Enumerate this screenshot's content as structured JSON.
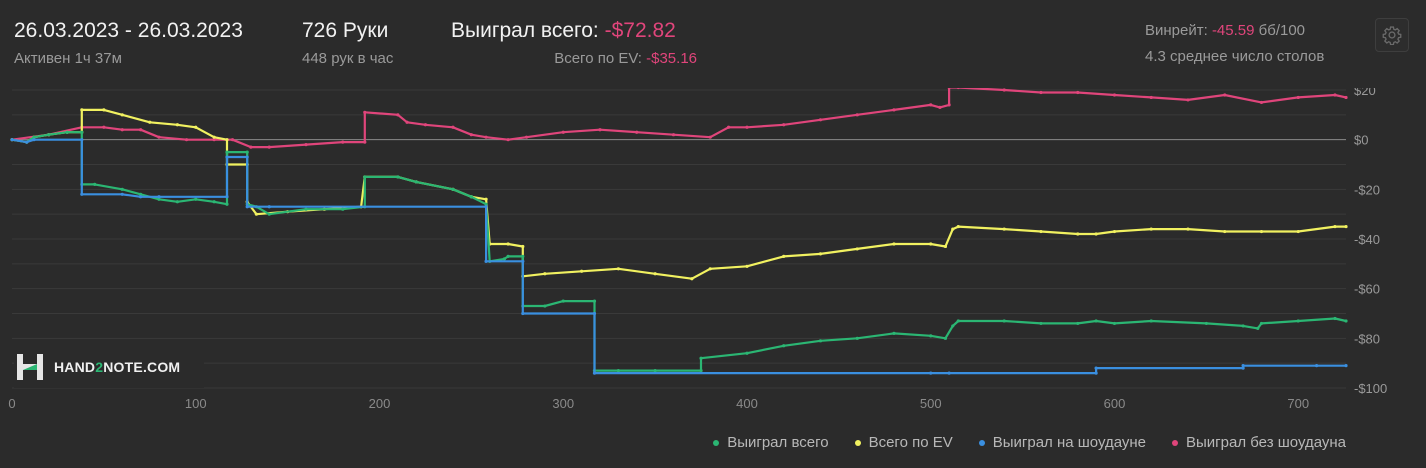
{
  "header": {
    "date_range": "26.03.2023 - 26.03.2023",
    "active": "Активен 1ч 37м",
    "hands": "726 Руки",
    "hands_per_hour": "448 рук в час",
    "won_label": "Выиграл всего: ",
    "won_value": "-$72.82",
    "ev_label": "Всего по EV: ",
    "ev_value": "-$35.16",
    "winrate_label": "Винрейт: ",
    "winrate_value": "-45.59",
    "winrate_unit": " бб/100",
    "tables": "4.3 среднее число столов"
  },
  "icons": {
    "settings": "gear-icon",
    "logo": "hand2note-logo-icon"
  },
  "logo": {
    "text_a": "HAND",
    "text_b": "2",
    "text_c": "NOTE.COM"
  },
  "colors": {
    "background": "#2b2b2b",
    "won": "#2bb673",
    "ev": "#f1f160",
    "showdown": "#3a8fe0",
    "nonshowdown": "#e0457b",
    "negative": "#e0457b"
  },
  "chart_data": {
    "type": "line",
    "xlim": [
      0,
      726
    ],
    "ylim": [
      -100,
      20
    ],
    "x_ticks": [
      0,
      100,
      200,
      300,
      400,
      500,
      600,
      700
    ],
    "y_ticks": [
      20,
      0,
      -20,
      -40,
      -60,
      -80,
      -100
    ],
    "y_tick_labels": [
      "$20",
      "$0",
      "-$20",
      "-$40",
      "-$60",
      "-$80",
      "-$100"
    ],
    "grid": true,
    "legend_position": "bottom-right",
    "series": [
      {
        "name": "Выиграл всего",
        "color": "#2bb673",
        "points": [
          [
            0,
            0
          ],
          [
            8,
            -1
          ],
          [
            12,
            1
          ],
          [
            20,
            2
          ],
          [
            30,
            3
          ],
          [
            38,
            3
          ],
          [
            38,
            -18
          ],
          [
            45,
            -18
          ],
          [
            60,
            -20
          ],
          [
            70,
            -22
          ],
          [
            80,
            -24
          ],
          [
            90,
            -25
          ],
          [
            100,
            -24
          ],
          [
            110,
            -25
          ],
          [
            117,
            -26
          ],
          [
            117,
            -5
          ],
          [
            128,
            -5
          ],
          [
            128,
            -26
          ],
          [
            133,
            -27
          ],
          [
            140,
            -30
          ],
          [
            160,
            -28
          ],
          [
            180,
            -28
          ],
          [
            192,
            -27
          ],
          [
            192,
            -15
          ],
          [
            210,
            -15
          ],
          [
            220,
            -17
          ],
          [
            240,
            -20
          ],
          [
            250,
            -23
          ],
          [
            258,
            -26
          ],
          [
            260,
            -49
          ],
          [
            268,
            -48
          ],
          [
            270,
            -47
          ],
          [
            278,
            -47
          ],
          [
            278,
            -67
          ],
          [
            290,
            -67
          ],
          [
            300,
            -65
          ],
          [
            317,
            -65
          ],
          [
            317,
            -93
          ],
          [
            330,
            -93
          ],
          [
            350,
            -93
          ],
          [
            375,
            -93
          ],
          [
            375,
            -88
          ],
          [
            400,
            -86
          ],
          [
            420,
            -83
          ],
          [
            440,
            -81
          ],
          [
            460,
            -80
          ],
          [
            480,
            -78
          ],
          [
            500,
            -79
          ],
          [
            508,
            -80
          ],
          [
            512,
            -75
          ],
          [
            515,
            -73
          ],
          [
            540,
            -73
          ],
          [
            560,
            -74
          ],
          [
            580,
            -74
          ],
          [
            590,
            -73
          ],
          [
            600,
            -74
          ],
          [
            620,
            -73
          ],
          [
            650,
            -74
          ],
          [
            670,
            -75
          ],
          [
            678,
            -76
          ],
          [
            680,
            -74
          ],
          [
            700,
            -73
          ],
          [
            720,
            -72
          ],
          [
            726,
            -73
          ]
        ]
      },
      {
        "name": "Всего по EV",
        "color": "#f1f160",
        "points": [
          [
            0,
            0
          ],
          [
            8,
            -1
          ],
          [
            12,
            1
          ],
          [
            20,
            2
          ],
          [
            30,
            3
          ],
          [
            38,
            3
          ],
          [
            38,
            12
          ],
          [
            50,
            12
          ],
          [
            60,
            10
          ],
          [
            75,
            7
          ],
          [
            90,
            6
          ],
          [
            100,
            5
          ],
          [
            110,
            1
          ],
          [
            117,
            0
          ],
          [
            117,
            -10
          ],
          [
            128,
            -10
          ],
          [
            128,
            -25
          ],
          [
            133,
            -30
          ],
          [
            150,
            -29
          ],
          [
            170,
            -28
          ],
          [
            190,
            -27
          ],
          [
            192,
            -15
          ],
          [
            210,
            -15
          ],
          [
            220,
            -17
          ],
          [
            240,
            -20
          ],
          [
            250,
            -23
          ],
          [
            258,
            -24
          ],
          [
            260,
            -42
          ],
          [
            270,
            -42
          ],
          [
            278,
            -43
          ],
          [
            278,
            -55
          ],
          [
            290,
            -54
          ],
          [
            310,
            -53
          ],
          [
            330,
            -52
          ],
          [
            350,
            -54
          ],
          [
            370,
            -56
          ],
          [
            380,
            -52
          ],
          [
            400,
            -51
          ],
          [
            420,
            -47
          ],
          [
            440,
            -46
          ],
          [
            460,
            -44
          ],
          [
            480,
            -42
          ],
          [
            500,
            -42
          ],
          [
            508,
            -43
          ],
          [
            512,
            -36
          ],
          [
            515,
            -35
          ],
          [
            540,
            -36
          ],
          [
            560,
            -37
          ],
          [
            580,
            -38
          ],
          [
            590,
            -38
          ],
          [
            600,
            -37
          ],
          [
            620,
            -36
          ],
          [
            640,
            -36
          ],
          [
            660,
            -37
          ],
          [
            680,
            -37
          ],
          [
            700,
            -37
          ],
          [
            720,
            -35
          ],
          [
            726,
            -35
          ]
        ]
      },
      {
        "name": "Выиграл на шоудауне",
        "color": "#3a8fe0",
        "points": [
          [
            0,
            0
          ],
          [
            8,
            -1
          ],
          [
            12,
            0
          ],
          [
            38,
            0
          ],
          [
            38,
            -22
          ],
          [
            60,
            -22
          ],
          [
            70,
            -23
          ],
          [
            80,
            -23
          ],
          [
            117,
            -23
          ],
          [
            117,
            -7
          ],
          [
            128,
            -7
          ],
          [
            128,
            -27
          ],
          [
            140,
            -27
          ],
          [
            258,
            -27
          ],
          [
            258,
            -49
          ],
          [
            278,
            -49
          ],
          [
            278,
            -70
          ],
          [
            317,
            -70
          ],
          [
            317,
            -94
          ],
          [
            500,
            -94
          ],
          [
            510,
            -94
          ],
          [
            590,
            -94
          ],
          [
            590,
            -92
          ],
          [
            670,
            -92
          ],
          [
            670,
            -91
          ],
          [
            710,
            -91
          ],
          [
            726,
            -91
          ]
        ]
      },
      {
        "name": "Выиграл без шоудауна",
        "color": "#e0457b",
        "points": [
          [
            0,
            0
          ],
          [
            20,
            2
          ],
          [
            38,
            5
          ],
          [
            50,
            5
          ],
          [
            60,
            4
          ],
          [
            70,
            4
          ],
          [
            80,
            1
          ],
          [
            95,
            0
          ],
          [
            110,
            0
          ],
          [
            117,
            0
          ],
          [
            120,
            0
          ],
          [
            130,
            -3
          ],
          [
            140,
            -3
          ],
          [
            160,
            -2
          ],
          [
            180,
            -1
          ],
          [
            192,
            -1
          ],
          [
            192,
            11
          ],
          [
            210,
            10
          ],
          [
            215,
            7
          ],
          [
            225,
            6
          ],
          [
            240,
            5
          ],
          [
            250,
            2
          ],
          [
            258,
            1
          ],
          [
            270,
            0
          ],
          [
            280,
            1
          ],
          [
            300,
            3
          ],
          [
            320,
            4
          ],
          [
            340,
            3
          ],
          [
            360,
            2
          ],
          [
            380,
            1
          ],
          [
            390,
            5
          ],
          [
            400,
            5
          ],
          [
            420,
            6
          ],
          [
            440,
            8
          ],
          [
            460,
            10
          ],
          [
            480,
            12
          ],
          [
            500,
            14
          ],
          [
            505,
            13
          ],
          [
            510,
            14
          ],
          [
            510,
            21
          ],
          [
            515,
            21
          ],
          [
            540,
            20
          ],
          [
            560,
            19
          ],
          [
            580,
            19
          ],
          [
            600,
            18
          ],
          [
            620,
            17
          ],
          [
            640,
            16
          ],
          [
            660,
            18
          ],
          [
            680,
            15
          ],
          [
            700,
            17
          ],
          [
            720,
            18
          ],
          [
            726,
            17
          ]
        ]
      }
    ]
  }
}
